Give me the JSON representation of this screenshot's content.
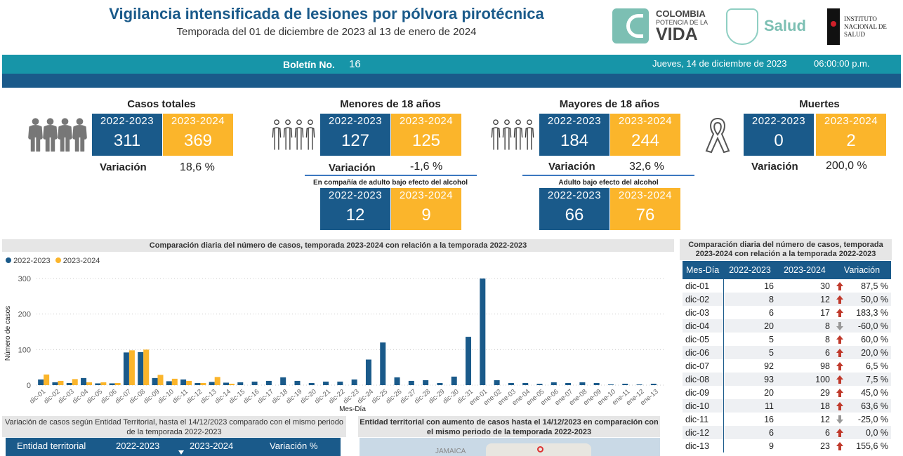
{
  "header": {
    "title": "Vigilancia intensificada de lesiones por pólvora pirotécnica",
    "subtitle": "Temporada del 01 de diciembre de 2023 al 13 de enero de 2024",
    "logos": {
      "colombia_line1": "COLOMBIA",
      "colombia_line2": "POTENCIA DE LA",
      "colombia_line3": "VIDA",
      "salud": "Salud",
      "ins_line1": "Instituto",
      "ins_line2": "Nacional de",
      "ins_line3": "Salud"
    }
  },
  "bulletin": {
    "label": "Boletín No.",
    "number": "16",
    "date": "Jueves, 14 de diciembre de 2023",
    "time": "06:00:00 p.m."
  },
  "colors": {
    "season_2022": "#1a5a8a",
    "season_2023": "#fbb52b",
    "teal": "#1795a8"
  },
  "kpis": {
    "totales": {
      "title": "Casos totales",
      "y1": "2022-2023",
      "v1": "311",
      "y2": "2023-2024",
      "v2": "369",
      "var_label": "Variación",
      "var": "18,6 %"
    },
    "menores": {
      "title": "Menores de 18 años",
      "y1": "2022-2023",
      "v1": "127",
      "y2": "2023-2024",
      "v2": "125",
      "var_label": "Variación",
      "var": "-1,6 %",
      "sub_title": "En compañía de adulto bajo efecto del alcohol",
      "sy1": "2022-2023",
      "sv1": "12",
      "sy2": "2023-2024",
      "sv2": "9"
    },
    "mayores": {
      "title": "Mayores de 18 años",
      "y1": "2022-2023",
      "v1": "184",
      "y2": "2023-2024",
      "v2": "244",
      "var_label": "Variación",
      "var": "32,6 %",
      "sub_title": "Adulto bajo efecto del alcohol",
      "sy1": "2022-2023",
      "sv1": "66",
      "sy2": "2023-2024",
      "sv2": "76"
    },
    "muertes": {
      "title": "Muertes",
      "y1": "2022-2023",
      "v1": "0",
      "y2": "2023-2024",
      "v2": "2",
      "var_label": "Variación",
      "var": "200,0 %"
    }
  },
  "chart_data": {
    "type": "bar",
    "title": "Comparación diaria del número de casos, temporada 2023-2024 con relación a la temporada 2022-2023",
    "xlabel": "Mes-Día",
    "ylabel": "Número de casos",
    "ylim": [
      0,
      300
    ],
    "yticks": [
      0,
      100,
      200,
      300
    ],
    "grid": true,
    "legend": "top-left",
    "categories": [
      "dic-01",
      "dic-02",
      "dic-03",
      "dic-04",
      "dic-05",
      "dic-06",
      "dic-07",
      "dic-08",
      "dic-09",
      "dic-10",
      "dic-11",
      "dic-12",
      "dic-13",
      "dic-14",
      "dic-15",
      "dic-16",
      "dic-17",
      "dic-18",
      "dic-19",
      "dic-20",
      "dic-21",
      "dic-22",
      "dic-23",
      "dic-24",
      "dic-25",
      "dic-26",
      "dic-27",
      "dic-28",
      "dic-29",
      "dic-30",
      "dic-31",
      "ene-01",
      "ene-02",
      "ene-03",
      "ene-04",
      "ene-05",
      "ene-06",
      "ene-07",
      "ene-08",
      "ene-09",
      "ene-10",
      "ene-11",
      "ene-12",
      "ene-13"
    ],
    "series": [
      {
        "name": "2022-2023",
        "values": [
          16,
          8,
          6,
          20,
          5,
          5,
          92,
          93,
          20,
          11,
          16,
          6,
          9,
          7,
          8,
          10,
          12,
          22,
          12,
          6,
          10,
          10,
          16,
          72,
          120,
          22,
          12,
          14,
          6,
          24,
          136,
          300,
          14,
          6,
          6,
          4,
          8,
          6,
          8,
          6,
          2,
          4,
          2,
          4
        ]
      },
      {
        "name": "2023-2024",
        "values": [
          30,
          12,
          17,
          8,
          8,
          6,
          98,
          100,
          29,
          18,
          12,
          6,
          23,
          4,
          null,
          null,
          null,
          null,
          null,
          null,
          null,
          null,
          null,
          null,
          null,
          null,
          null,
          null,
          null,
          null,
          null,
          null,
          null,
          null,
          null,
          null,
          null,
          null,
          null,
          null,
          null,
          null,
          null,
          null
        ]
      }
    ]
  },
  "daily_table": {
    "title": "Comparación diaria del número de casos, temporada 2023-2024 con relación a la temporada 2022-2023",
    "columns": [
      "Mes-Día",
      "2022-2023",
      "2023-2024",
      "Variación"
    ],
    "rows": [
      [
        "dic-01",
        "16",
        "30",
        "up",
        "87,5 %"
      ],
      [
        "dic-02",
        "8",
        "12",
        "up",
        "50,0 %"
      ],
      [
        "dic-03",
        "6",
        "17",
        "up",
        "183,3 %"
      ],
      [
        "dic-04",
        "20",
        "8",
        "down",
        "-60,0 %"
      ],
      [
        "dic-05",
        "5",
        "8",
        "up",
        "60,0 %"
      ],
      [
        "dic-06",
        "5",
        "6",
        "up",
        "20,0 %"
      ],
      [
        "dic-07",
        "92",
        "98",
        "up",
        "6,5 %"
      ],
      [
        "dic-08",
        "93",
        "100",
        "up",
        "7,5 %"
      ],
      [
        "dic-09",
        "20",
        "29",
        "up",
        "45,0 %"
      ],
      [
        "dic-10",
        "11",
        "18",
        "up",
        "63,6 %"
      ],
      [
        "dic-11",
        "16",
        "12",
        "down",
        "-25,0 %"
      ],
      [
        "dic-12",
        "6",
        "6",
        "up",
        "0,0 %"
      ],
      [
        "dic-13",
        "9",
        "23",
        "up",
        "155,6 %"
      ]
    ]
  },
  "entity_panel": {
    "title": "Variación de casos según Entidad Territorial, hasta el 14/12/2023 comparado con el mismo periodo de la temporada 2022-2023",
    "columns": [
      "Entidad territorial",
      "2022-2023",
      "2023-2024",
      "Variación %"
    ]
  },
  "map_panel": {
    "title": "Entidad territorial con aumento de casos hasta el 14/12/2023 en comparación con el mismo periodo de la temporada 2022-2023",
    "map_label": "JAMAICA"
  }
}
